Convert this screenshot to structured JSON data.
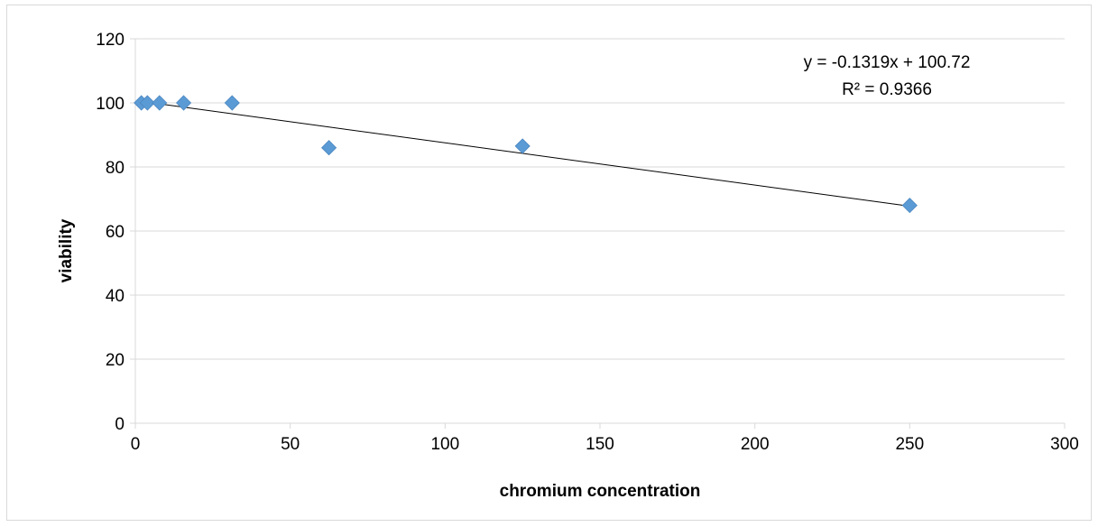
{
  "chart_data": {
    "type": "scatter",
    "title": "",
    "xlabel": "chromium concentration",
    "ylabel": "viability",
    "xlim": [
      0,
      300
    ],
    "ylim": [
      0,
      120
    ],
    "x_ticks": [
      "0",
      "50",
      "100",
      "150",
      "200",
      "250",
      "300"
    ],
    "y_ticks": [
      "0",
      "20",
      "40",
      "60",
      "80",
      "100",
      "120"
    ],
    "grid": "horizontal",
    "legend": "none",
    "series": [
      {
        "x": [
          1.95,
          3.9,
          7.8,
          15.6,
          31.25,
          62.5,
          125,
          250
        ],
        "y": [
          100,
          100,
          100,
          100,
          100,
          86,
          86.5,
          68
        ],
        "color": "#5b9bd5",
        "marker": "diamond"
      }
    ],
    "trendline": {
      "type": "linear",
      "slope": -0.1319,
      "intercept": 100.72,
      "x_range": [
        1.95,
        250
      ],
      "color": "#000000",
      "equation_label": "y = -0.1319x + 100.72",
      "r2_label": "R² = 0.9366"
    }
  }
}
